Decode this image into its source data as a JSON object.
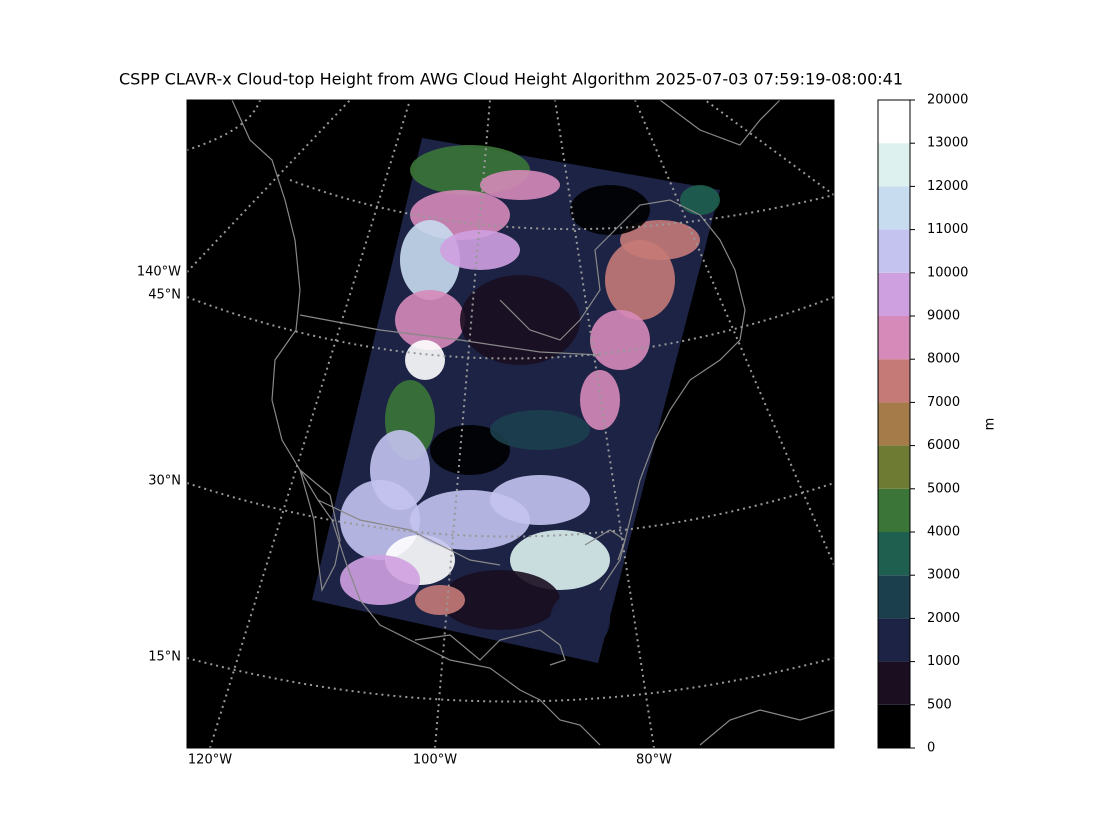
{
  "title": "CSPP CLAVR-x Cloud-top Height from AWG Cloud Height Algorithm 2025-07-03 07:59:19-08:00:41",
  "map": {
    "lon_labels": [
      "120°W",
      "100°W",
      "80°W"
    ],
    "lat_labels": [
      "140°W",
      "45°N",
      "30°N",
      "15°N"
    ]
  },
  "colorbar": {
    "label": "m",
    "levels": [
      0,
      500,
      1000,
      2000,
      3000,
      4000,
      5000,
      6000,
      7000,
      8000,
      9000,
      10000,
      11000,
      12000,
      13000,
      20000
    ],
    "colors": [
      "#000000",
      "#1a0e20",
      "#1d2345",
      "#1c3f4d",
      "#1f5f4f",
      "#3b7537",
      "#6e7c33",
      "#a57b4a",
      "#c57a78",
      "#d68ab9",
      "#cfa0e0",
      "#c4c3f0",
      "#c8dcef",
      "#ddf1ee",
      "#ffffff"
    ]
  }
}
